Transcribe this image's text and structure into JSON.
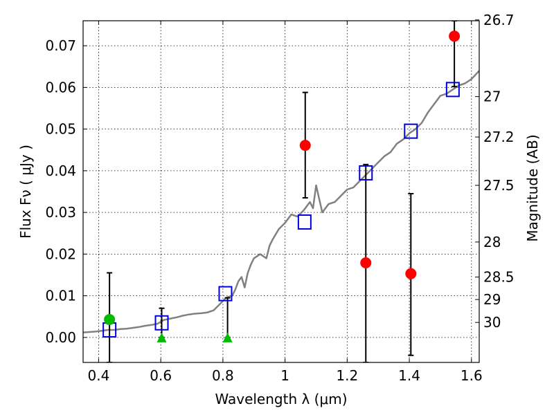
{
  "chart_data": {
    "type": "scatter",
    "title": "",
    "xlabel_text": "Wavelength  λ (μm)",
    "ylabel_text": "Flux  Fν  ( μJy )",
    "y2label_text": "Magnitude (AB)",
    "xlim": [
      0.35,
      1.625
    ],
    "ylim": [
      -0.006,
      0.076
    ],
    "grid": true,
    "x_ticks": [
      0.4,
      0.6,
      0.8,
      1.0,
      1.2,
      1.4,
      1.6
    ],
    "x_tick_labels": [
      "0.4",
      "0.6",
      "0.8",
      "1",
      "1.2",
      "1.4",
      "1.6"
    ],
    "y_ticks": [
      0.0,
      0.01,
      0.02,
      0.03,
      0.04,
      0.05,
      0.06,
      0.07
    ],
    "y_tick_labels": [
      "0.00",
      "0.01",
      "0.02",
      "0.03",
      "0.04",
      "0.05",
      "0.06",
      "0.07"
    ],
    "mag_ticks": [
      {
        "label": "26.7",
        "flux": 0.0762
      },
      {
        "label": "27",
        "flux": 0.0578
      },
      {
        "label": "27.2",
        "flux": 0.0481
      },
      {
        "label": "27.5",
        "flux": 0.0365
      },
      {
        "label": "28",
        "flux": 0.0229
      },
      {
        "label": "28.5",
        "flux": 0.0145
      },
      {
        "label": "29",
        "flux": 0.0091
      },
      {
        "label": "30",
        "flux": 0.0036
      }
    ],
    "colors": {
      "model": "#808080",
      "model_points": "#0000dd",
      "detections": "#ff0000",
      "green": "#00bb00",
      "errorbars": "#000000"
    },
    "series": [
      {
        "kind": "line",
        "x": [
          0.35,
          0.37,
          0.39,
          0.41,
          0.43,
          0.45,
          0.47,
          0.49,
          0.51,
          0.53,
          0.55,
          0.57,
          0.59,
          0.6,
          0.61,
          0.63,
          0.65,
          0.67,
          0.69,
          0.71,
          0.73,
          0.75,
          0.77,
          0.79,
          0.81,
          0.82,
          0.83,
          0.84,
          0.85,
          0.86,
          0.87,
          0.88,
          0.89,
          0.9,
          0.92,
          0.94,
          0.95,
          0.96,
          0.98,
          1.0,
          1.02,
          1.04,
          1.06,
          1.08,
          1.09,
          1.1,
          1.12,
          1.14,
          1.16,
          1.18,
          1.2,
          1.22,
          1.24,
          1.26,
          1.28,
          1.3,
          1.32,
          1.34,
          1.36,
          1.38,
          1.4,
          1.42,
          1.44,
          1.46,
          1.48,
          1.5,
          1.52,
          1.54,
          1.56,
          1.58,
          1.6,
          1.625
        ],
        "y": [
          0.0012,
          0.0013,
          0.0014,
          0.0016,
          0.0018,
          0.0018,
          0.002,
          0.0021,
          0.0023,
          0.0025,
          0.0028,
          0.003,
          0.0033,
          0.0038,
          0.0042,
          0.0045,
          0.0048,
          0.0052,
          0.0055,
          0.0057,
          0.0058,
          0.006,
          0.0065,
          0.008,
          0.0095,
          0.0098,
          0.01,
          0.0115,
          0.0135,
          0.0145,
          0.012,
          0.0155,
          0.0175,
          0.019,
          0.02,
          0.019,
          0.022,
          0.0235,
          0.026,
          0.0275,
          0.0295,
          0.029,
          0.0305,
          0.0325,
          0.031,
          0.0365,
          0.03,
          0.032,
          0.0325,
          0.034,
          0.0355,
          0.036,
          0.0375,
          0.039,
          0.0405,
          0.042,
          0.0435,
          0.0445,
          0.0465,
          0.0475,
          0.049,
          0.05,
          0.0515,
          0.054,
          0.056,
          0.058,
          0.0585,
          0.0595,
          0.0605,
          0.061,
          0.062,
          0.064
        ]
      },
      {
        "kind": "model_points",
        "x": [
          0.435,
          0.603,
          0.808,
          1.063,
          1.26,
          1.405,
          1.54
        ],
        "y": [
          0.0018,
          0.0035,
          0.0105,
          0.0277,
          0.0395,
          0.0495,
          0.0595
        ]
      },
      {
        "kind": "detections",
        "x": [
          1.065,
          1.26,
          1.405,
          1.545
        ],
        "y": [
          0.0461,
          0.0179,
          0.0153,
          0.0723
        ],
        "yerr_low": [
          0.0335,
          -0.006,
          -0.0043,
          0.0602
        ],
        "yerr_high": [
          0.0588,
          0.0415,
          0.0345,
          0.076
        ]
      },
      {
        "kind": "green_point",
        "x": [
          0.435
        ],
        "y": [
          0.0043
        ],
        "yerr_low": [
          -0.006
        ],
        "yerr_high": [
          0.0155
        ]
      },
      {
        "kind": "upper_limits",
        "x": [
          0.603,
          0.815
        ],
        "y": [
          0.0,
          0.0
        ],
        "yerr_high": [
          0.007,
          0.0095
        ]
      }
    ]
  }
}
